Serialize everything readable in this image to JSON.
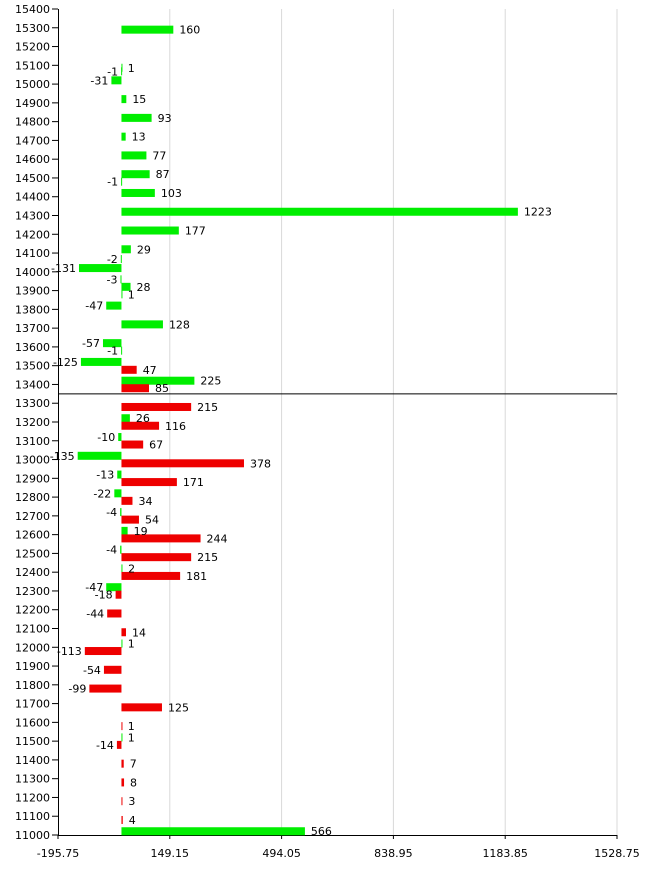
{
  "chart_data": {
    "type": "bar",
    "orientation": "horizontal",
    "title": "",
    "xlabel": "",
    "ylabel": "",
    "xlim": [
      -195.75,
      1528.75
    ],
    "ylim": [
      11000,
      15400
    ],
    "x_ticks": [
      "-195.75",
      "149.15",
      "494.05",
      "838.95",
      "1183.85",
      "1528.75"
    ],
    "x_tick_values": [
      -195.75,
      149.15,
      494.05,
      838.95,
      1183.85,
      1528.75
    ],
    "y_ticks": [
      "11000",
      "11100",
      "11200",
      "11300",
      "11400",
      "11500",
      "11600",
      "11700",
      "11800",
      "11900",
      "12000",
      "12100",
      "12200",
      "12300",
      "12400",
      "12500",
      "12600",
      "12700",
      "12800",
      "12900",
      "13000",
      "13100",
      "13200",
      "13300",
      "13400",
      "13500",
      "13600",
      "13700",
      "13800",
      "13900",
      "14000",
      "14100",
      "14200",
      "14300",
      "14400",
      "14500",
      "14600",
      "14700",
      "14800",
      "14900",
      "15000",
      "15100",
      "15200",
      "15300",
      "15400"
    ],
    "reference_line": 13350,
    "grid": "vertical",
    "colors": {
      "green": "#00ee00",
      "red": "#ee0000",
      "grid": "#d9d9d9",
      "axis": "#000000"
    },
    "series": [
      {
        "name": "",
        "color": "#00ee00",
        "points": [
          {
            "y": 15290,
            "value": 160
          },
          {
            "y": 15087,
            "value": 1
          },
          {
            "y": 15068,
            "value": -1
          },
          {
            "y": 15020,
            "value": -31
          },
          {
            "y": 14920,
            "value": 15
          },
          {
            "y": 14820,
            "value": 93
          },
          {
            "y": 14720,
            "value": 13
          },
          {
            "y": 14620,
            "value": 77
          },
          {
            "y": 14520,
            "value": 87
          },
          {
            "y": 14480,
            "value": -1
          },
          {
            "y": 14420,
            "value": 103
          },
          {
            "y": 14320,
            "value": 1223
          },
          {
            "y": 14220,
            "value": 177
          },
          {
            "y": 14120,
            "value": 29
          },
          {
            "y": 14068,
            "value": -2
          },
          {
            "y": 14020,
            "value": -131
          },
          {
            "y": 13960,
            "value": -3
          },
          {
            "y": 13920,
            "value": 28
          },
          {
            "y": 13880,
            "value": 1
          },
          {
            "y": 13820,
            "value": -47
          },
          {
            "y": 13720,
            "value": 128
          },
          {
            "y": 13620,
            "value": -57
          },
          {
            "y": 13580,
            "value": -1
          },
          {
            "y": 13520,
            "value": -125
          },
          {
            "y": 13420,
            "value": 225
          },
          {
            "y": 13220,
            "value": 26
          },
          {
            "y": 13120,
            "value": -10
          },
          {
            "y": 13020,
            "value": -135
          },
          {
            "y": 12920,
            "value": -13
          },
          {
            "y": 12820,
            "value": -22
          },
          {
            "y": 12720,
            "value": -4
          },
          {
            "y": 12620,
            "value": 19
          },
          {
            "y": 12520,
            "value": -4
          },
          {
            "y": 12420,
            "value": 2
          },
          {
            "y": 12320,
            "value": -47
          },
          {
            "y": 12020,
            "value": 1
          },
          {
            "y": 11520,
            "value": 1
          },
          {
            "y": 11020,
            "value": 566
          }
        ]
      },
      {
        "name": "",
        "color": "#ee0000",
        "points": [
          {
            "y": 13478,
            "value": 47
          },
          {
            "y": 13380,
            "value": 85
          },
          {
            "y": 13280,
            "value": 215
          },
          {
            "y": 13180,
            "value": 116
          },
          {
            "y": 13080,
            "value": 67
          },
          {
            "y": 12980,
            "value": 378
          },
          {
            "y": 12880,
            "value": 171
          },
          {
            "y": 12780,
            "value": 34
          },
          {
            "y": 12680,
            "value": 54
          },
          {
            "y": 12580,
            "value": 244
          },
          {
            "y": 12480,
            "value": 215
          },
          {
            "y": 12380,
            "value": 181
          },
          {
            "y": 12280,
            "value": -18
          },
          {
            "y": 12180,
            "value": -44
          },
          {
            "y": 12080,
            "value": 14
          },
          {
            "y": 11980,
            "value": -113
          },
          {
            "y": 11880,
            "value": -54
          },
          {
            "y": 11780,
            "value": -99
          },
          {
            "y": 11680,
            "value": 125
          },
          {
            "y": 11580,
            "value": 1
          },
          {
            "y": 11480,
            "value": -14
          },
          {
            "y": 11380,
            "value": 7
          },
          {
            "y": 11280,
            "value": 8
          },
          {
            "y": 11180,
            "value": 3
          },
          {
            "y": 11080,
            "value": 4
          }
        ]
      }
    ]
  }
}
